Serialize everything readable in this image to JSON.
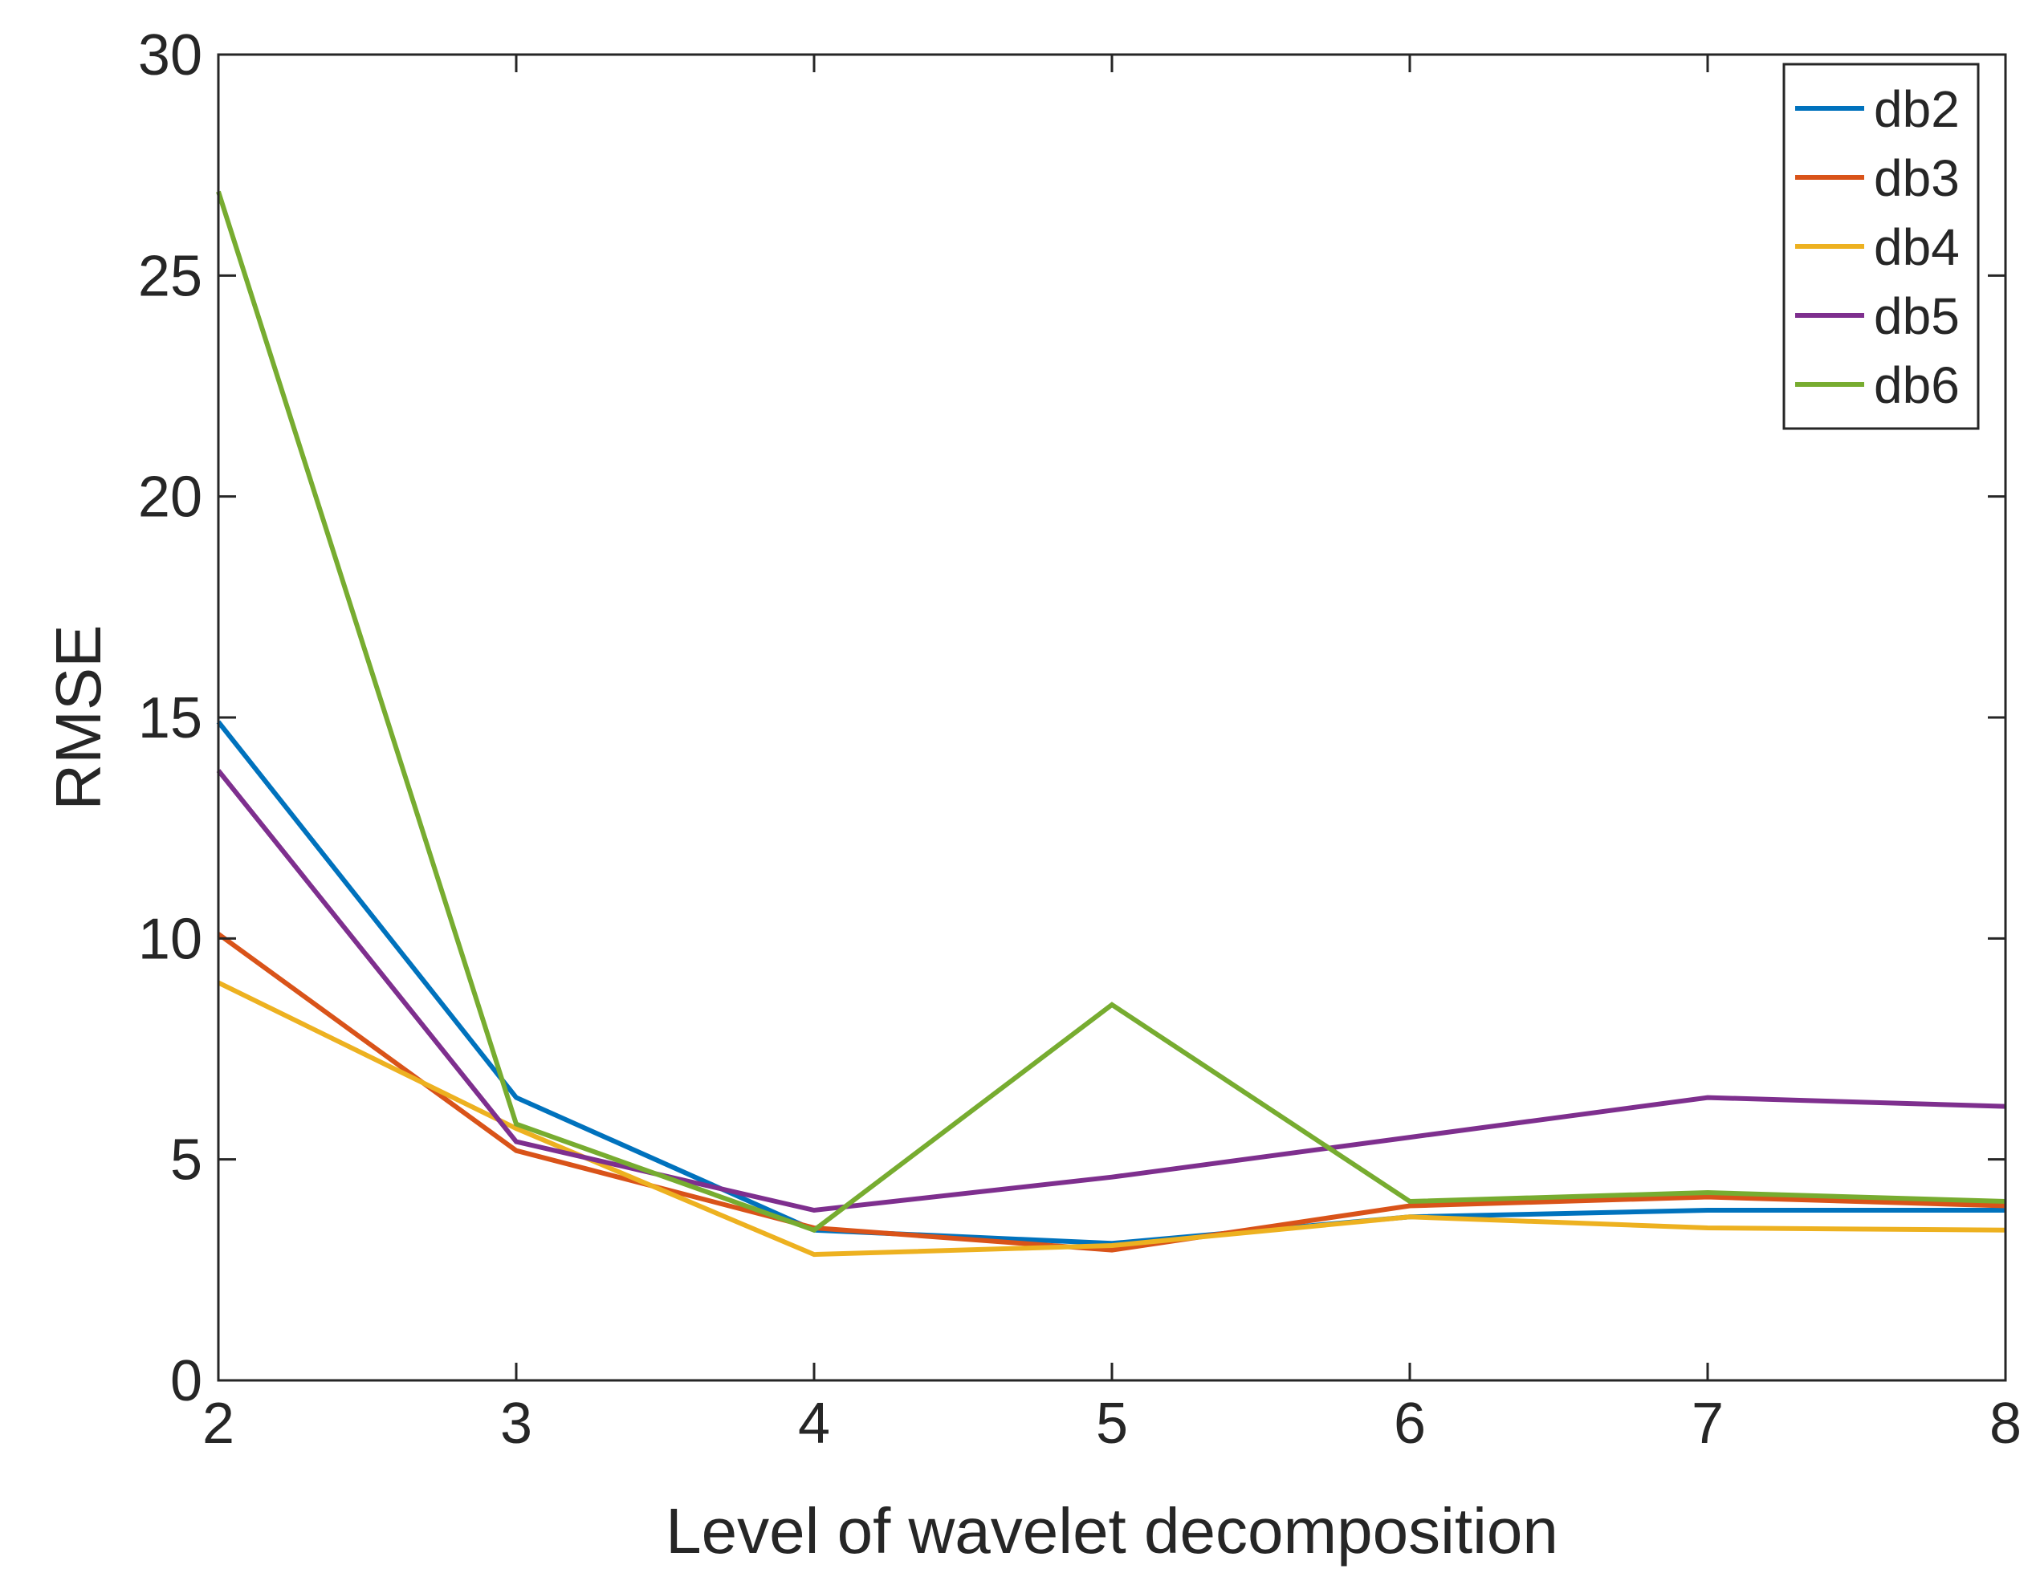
{
  "chart_data": {
    "type": "line",
    "title": "",
    "xlabel": "Level of wavelet decomposition",
    "ylabel": "RMSE",
    "x": [
      2,
      3,
      4,
      5,
      6,
      7,
      8
    ],
    "xlim": [
      2,
      8
    ],
    "ylim": [
      0,
      30
    ],
    "xticks": [
      "2",
      "3",
      "4",
      "5",
      "6",
      "7",
      "8"
    ],
    "yticks": [
      "0",
      "5",
      "10",
      "15",
      "20",
      "25",
      "30"
    ],
    "grid": false,
    "legend_position": "top-right",
    "series": [
      {
        "name": "db2",
        "color": "#0072BD",
        "values": [
          14.9,
          6.4,
          3.4,
          3.1,
          3.7,
          3.85,
          3.85
        ]
      },
      {
        "name": "db3",
        "color": "#D95319",
        "values": [
          10.1,
          5.2,
          3.45,
          2.95,
          3.95,
          4.15,
          3.95
        ]
      },
      {
        "name": "db4",
        "color": "#EDB120",
        "values": [
          9.0,
          5.7,
          2.85,
          3.05,
          3.7,
          3.45,
          3.4
        ]
      },
      {
        "name": "db5",
        "color": "#7E2F8E",
        "values": [
          13.8,
          5.4,
          3.85,
          4.6,
          5.5,
          6.4,
          6.2
        ]
      },
      {
        "name": "db6",
        "color": "#77AC30",
        "values": [
          26.9,
          5.8,
          3.4,
          8.5,
          4.05,
          4.25,
          4.05
        ]
      }
    ]
  }
}
